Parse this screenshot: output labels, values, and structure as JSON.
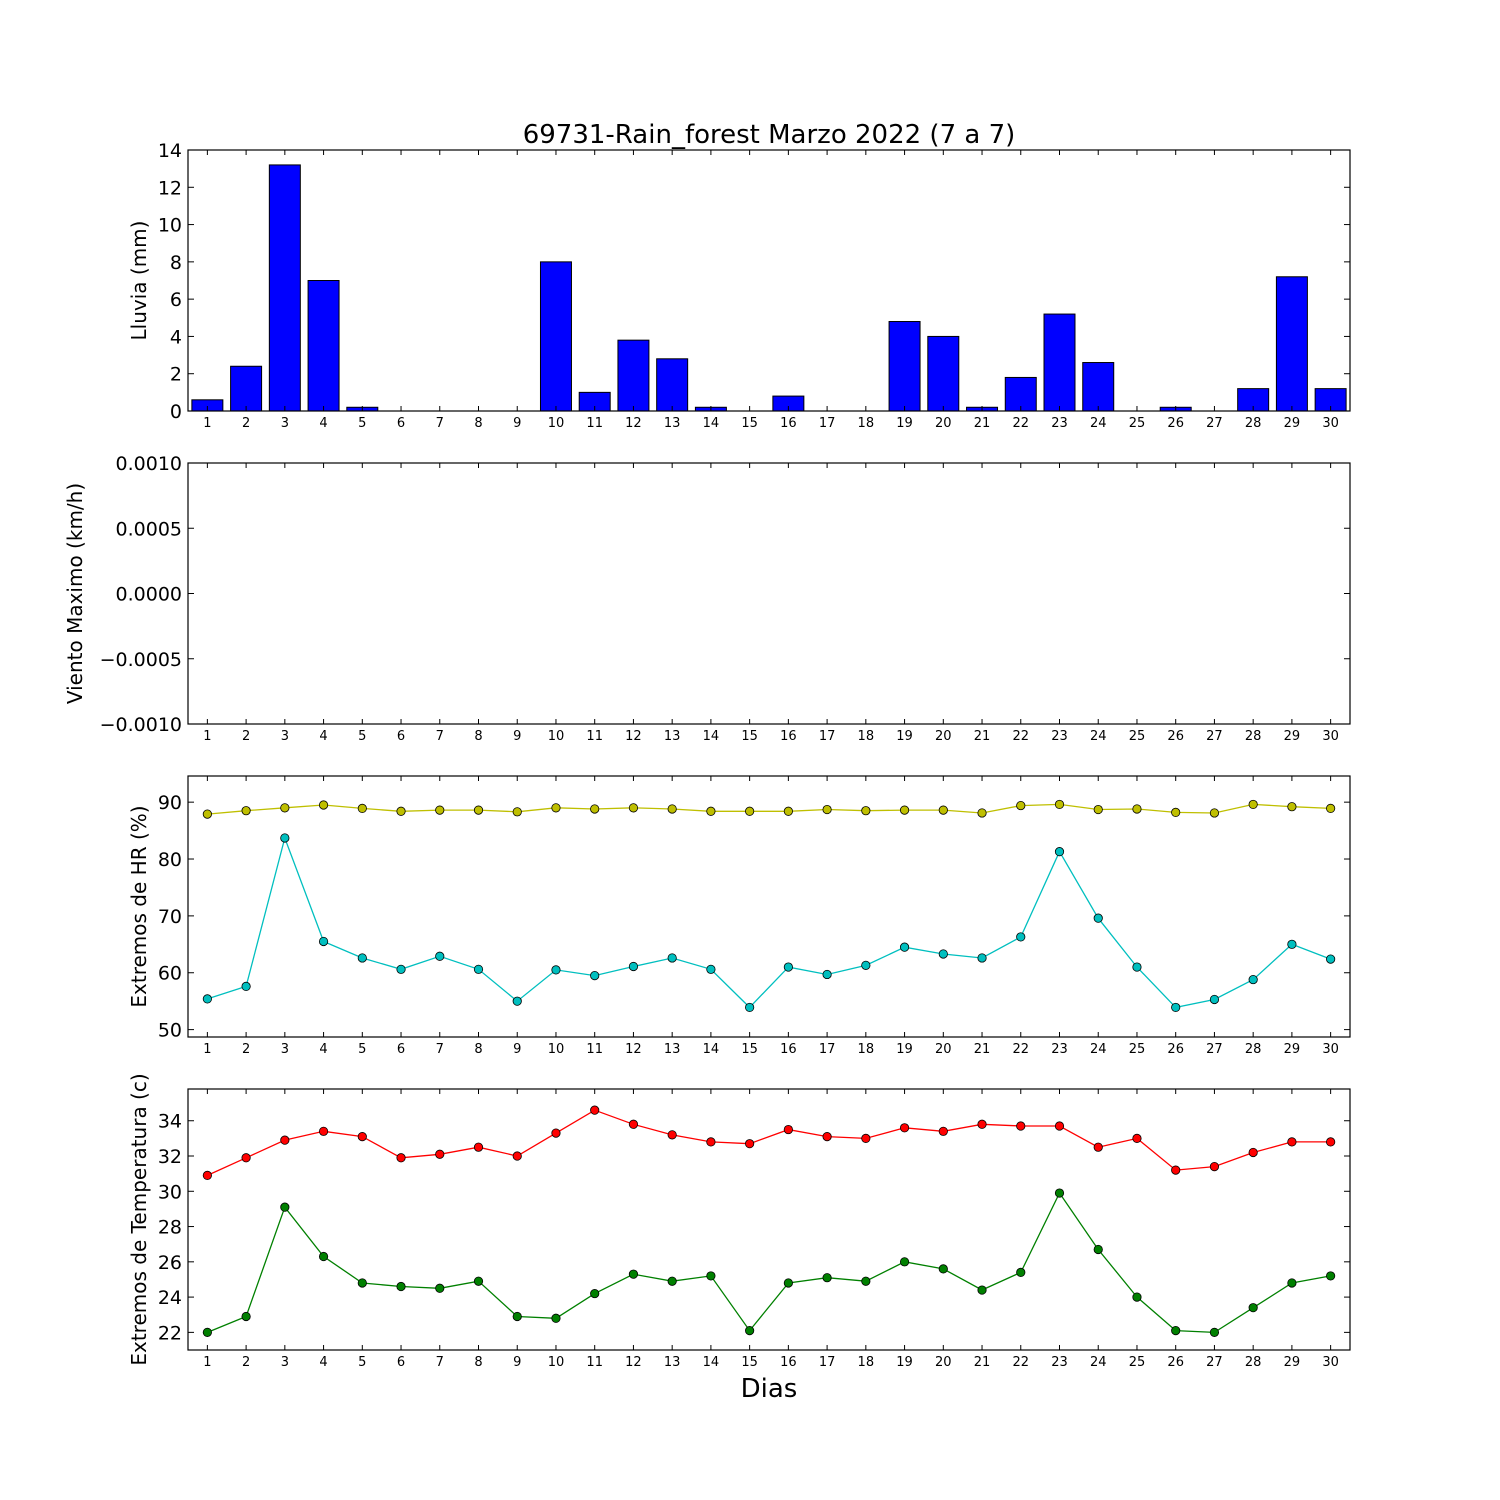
{
  "chart_data": [
    {
      "type": "bar",
      "title": "69731-Rain_forest Marzo 2022  (7 a 7)",
      "ylabel": "Lluvia (mm)",
      "xlabel": "",
      "x": [
        1,
        2,
        3,
        4,
        5,
        6,
        7,
        8,
        9,
        10,
        11,
        12,
        13,
        14,
        15,
        16,
        17,
        18,
        19,
        20,
        21,
        22,
        23,
        24,
        25,
        26,
        27,
        28,
        29,
        30
      ],
      "values": [
        0.6,
        2.4,
        13.2,
        7.0,
        0.2,
        0,
        0,
        0,
        0,
        8.0,
        1.0,
        3.8,
        2.8,
        0.2,
        0,
        0.8,
        0,
        0,
        4.8,
        4.0,
        0.2,
        1.8,
        5.2,
        2.6,
        0,
        0.2,
        0,
        1.2,
        7.2,
        1.2
      ],
      "ylim": [
        0,
        14
      ],
      "yticks": [
        "0",
        "2",
        "4",
        "6",
        "8",
        "10",
        "12",
        "14"
      ],
      "colors": {
        "bar": "#0000ff"
      }
    },
    {
      "type": "line",
      "ylabel": "Viento Maximo (km/h)",
      "x": [
        1,
        2,
        3,
        4,
        5,
        6,
        7,
        8,
        9,
        10,
        11,
        12,
        13,
        14,
        15,
        16,
        17,
        18,
        19,
        20,
        21,
        22,
        23,
        24,
        25,
        26,
        27,
        28,
        29,
        30
      ],
      "series": [],
      "ylim": [
        -0.001,
        0.001
      ],
      "yticks": [
        "−0.0010",
        "−0.0005",
        "0.0000",
        "0.0005",
        "0.0010"
      ]
    },
    {
      "type": "line",
      "ylabel": "Extremos de HR (%)",
      "x": [
        1,
        2,
        3,
        4,
        5,
        6,
        7,
        8,
        9,
        10,
        11,
        12,
        13,
        14,
        15,
        16,
        17,
        18,
        19,
        20,
        21,
        22,
        23,
        24,
        25,
        26,
        27,
        28,
        29,
        30
      ],
      "series": [
        {
          "color": "#bfbf00",
          "values": [
            87.9,
            88.5,
            89.0,
            89.5,
            88.9,
            88.4,
            88.6,
            88.6,
            88.3,
            89.0,
            88.8,
            89.0,
            88.8,
            88.4,
            88.4,
            88.4,
            88.7,
            88.5,
            88.6,
            88.6,
            88.1,
            89.4,
            89.6,
            88.7,
            88.8,
            88.2,
            88.1,
            89.6,
            89.2,
            88.9
          ]
        },
        {
          "color": "#00bfbf",
          "values": [
            55.4,
            57.6,
            83.7,
            65.5,
            62.6,
            60.6,
            62.9,
            60.6,
            55.0,
            60.5,
            59.5,
            61.1,
            62.6,
            60.6,
            53.9,
            61.0,
            59.7,
            61.3,
            64.5,
            63.3,
            62.6,
            66.3,
            81.3,
            69.6,
            61.0,
            53.9,
            55.3,
            58.8,
            65.0,
            62.4
          ]
        }
      ],
      "ylim": [
        48.7,
        94.6
      ],
      "yticks": [
        "50",
        "60",
        "70",
        "80",
        "90"
      ]
    },
    {
      "type": "line",
      "ylabel": "Extremos de Temperatura (c)",
      "xlabel": "Dias",
      "x": [
        1,
        2,
        3,
        4,
        5,
        6,
        7,
        8,
        9,
        10,
        11,
        12,
        13,
        14,
        15,
        16,
        17,
        18,
        19,
        20,
        21,
        22,
        23,
        24,
        25,
        26,
        27,
        28,
        29,
        30
      ],
      "series": [
        {
          "color": "#ff0000",
          "values": [
            30.9,
            31.9,
            32.9,
            33.4,
            33.1,
            31.9,
            32.1,
            32.5,
            32.0,
            33.3,
            34.6,
            33.8,
            33.2,
            32.8,
            32.7,
            33.5,
            33.1,
            33.0,
            33.6,
            33.4,
            33.8,
            33.7,
            33.7,
            32.5,
            33.0,
            31.2,
            31.4,
            32.2,
            32.8,
            32.8
          ]
        },
        {
          "color": "#008000",
          "values": [
            22.0,
            22.9,
            29.1,
            26.3,
            24.8,
            24.6,
            24.5,
            24.9,
            22.9,
            22.8,
            24.2,
            25.3,
            24.9,
            25.2,
            22.1,
            24.8,
            25.1,
            24.9,
            26.0,
            25.6,
            24.4,
            25.4,
            29.9,
            26.7,
            24.0,
            22.1,
            22.0,
            23.4,
            24.8,
            25.2
          ]
        }
      ],
      "ylim": [
        21.0,
        35.8
      ],
      "yticks": [
        "22",
        "24",
        "26",
        "28",
        "30",
        "32",
        "34"
      ]
    }
  ]
}
